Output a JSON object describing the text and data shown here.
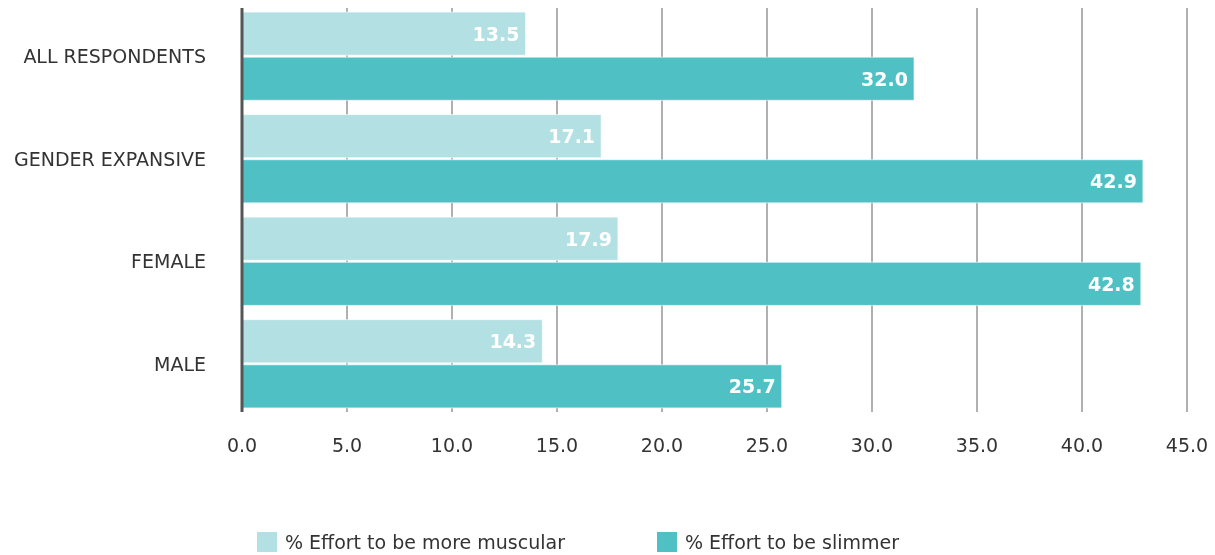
{
  "chart_data": {
    "type": "bar",
    "orientation": "horizontal",
    "categories": [
      "ALL RESPONDENTS",
      "GENDER EXPANSIVE",
      "FEMALE",
      "MALE"
    ],
    "series": [
      {
        "name": "% Effort to be more muscular",
        "color": "#b3e0e3",
        "values": [
          13.5,
          17.1,
          17.9,
          14.3
        ],
        "value_labels": [
          "13.5",
          "17.1",
          "17.9",
          "14.3"
        ]
      },
      {
        "name": "% Effort to be slimmer",
        "color": "#4fc1c5",
        "values": [
          32,
          42.9,
          42.8,
          25.7
        ],
        "value_labels": [
          "32.0",
          "42.9",
          "42.8",
          "25.7"
        ]
      }
    ],
    "xlim": [
      0,
      45
    ],
    "xticks": [
      {
        "value": 0,
        "label": "0.0"
      },
      {
        "value": 5,
        "label": "5.0"
      },
      {
        "value": 10,
        "label": "10.0"
      },
      {
        "value": 15,
        "label": "15.0"
      },
      {
        "value": 20,
        "label": "20.0"
      },
      {
        "value": 25,
        "label": "25.0"
      },
      {
        "value": 30,
        "label": "30.0"
      },
      {
        "value": 35,
        "label": "35.0"
      },
      {
        "value": 40,
        "label": "40.0"
      },
      {
        "value": 45,
        "label": "45.0"
      }
    ],
    "grid": "x",
    "legend": "bottom"
  }
}
